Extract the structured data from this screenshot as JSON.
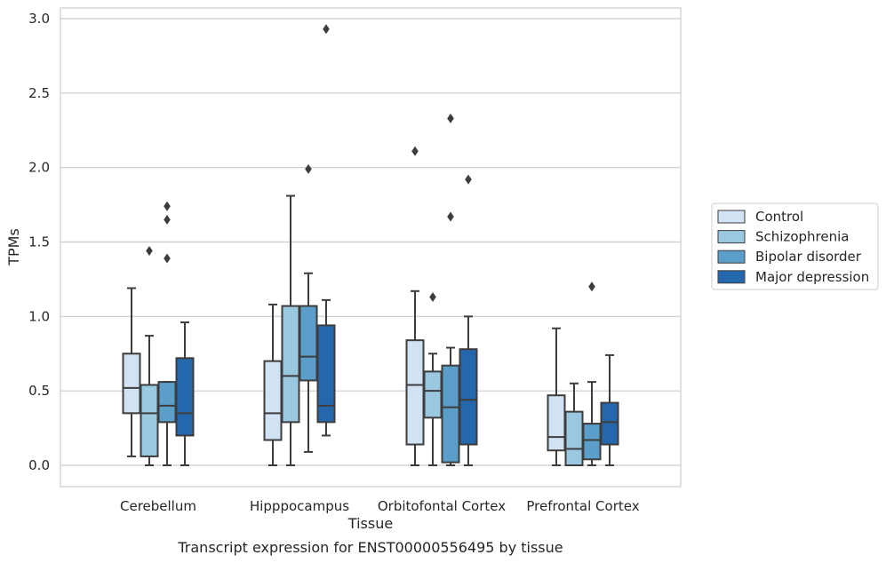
{
  "chart_data": {
    "type": "box",
    "xlabel": "Tissue",
    "ylabel": "TPMs",
    "caption": "Transcript expression for ENST00000556495 by tissue",
    "ylim": [
      -0.14,
      3.08
    ],
    "yticks": [
      "0.0",
      "0.5",
      "1.0",
      "1.5",
      "2.0",
      "2.5",
      "3.0"
    ],
    "grid": "horizontal",
    "legend_position": "right",
    "categories": [
      "Cerebellum",
      "Hipppocampus",
      "Orbitofontal Cortex",
      "Prefrontal Cortex"
    ],
    "series": [
      {
        "name": "Control",
        "color": "#d1e2f2",
        "boxes": [
          {
            "min": 0.06,
            "q1": 0.35,
            "median": 0.52,
            "q3": 0.75,
            "max": 1.19,
            "outliers": []
          },
          {
            "min": 0.0,
            "q1": 0.17,
            "median": 0.35,
            "q3": 0.7,
            "max": 1.08,
            "outliers": []
          },
          {
            "min": 0.0,
            "q1": 0.14,
            "median": 0.54,
            "q3": 0.84,
            "max": 1.17,
            "outliers": [
              2.11
            ]
          },
          {
            "min": 0.0,
            "q1": 0.1,
            "median": 0.19,
            "q3": 0.47,
            "max": 0.92,
            "outliers": []
          }
        ]
      },
      {
        "name": "Schizophrenia",
        "color": "#9ac8e0",
        "boxes": [
          {
            "min": 0.0,
            "q1": 0.06,
            "median": 0.35,
            "q3": 0.54,
            "max": 0.87,
            "outliers": [
              1.44
            ]
          },
          {
            "min": 0.0,
            "q1": 0.29,
            "median": 0.6,
            "q3": 1.07,
            "max": 1.81,
            "outliers": []
          },
          {
            "min": 0.0,
            "q1": 0.32,
            "median": 0.5,
            "q3": 0.63,
            "max": 0.75,
            "outliers": [
              1.13
            ]
          },
          {
            "min": 0.0,
            "q1": 0.0,
            "median": 0.11,
            "q3": 0.36,
            "max": 0.55,
            "outliers": []
          }
        ]
      },
      {
        "name": "Bipolar disorder",
        "color": "#5a9ec9",
        "boxes": [
          {
            "min": 0.0,
            "q1": 0.29,
            "median": 0.4,
            "q3": 0.56,
            "max": 0.56,
            "outliers": [
              1.39,
              1.65,
              1.74
            ]
          },
          {
            "min": 0.09,
            "q1": 0.57,
            "median": 0.73,
            "q3": 1.07,
            "max": 1.29,
            "outliers": [
              1.99
            ]
          },
          {
            "min": 0.0,
            "q1": 0.02,
            "median": 0.39,
            "q3": 0.67,
            "max": 0.79,
            "outliers": [
              1.67,
              2.33
            ]
          },
          {
            "min": 0.0,
            "q1": 0.04,
            "median": 0.17,
            "q3": 0.28,
            "max": 0.56,
            "outliers": [
              1.2
            ]
          }
        ]
      },
      {
        "name": "Major depression",
        "color": "#2567ac",
        "boxes": [
          {
            "min": 0.0,
            "q1": 0.2,
            "median": 0.35,
            "q3": 0.72,
            "max": 0.96,
            "outliers": []
          },
          {
            "min": 0.2,
            "q1": 0.29,
            "median": 0.4,
            "q3": 0.94,
            "max": 1.11,
            "outliers": [
              2.93
            ]
          },
          {
            "min": 0.0,
            "q1": 0.14,
            "median": 0.44,
            "q3": 0.78,
            "max": 1.0,
            "outliers": [
              1.92
            ]
          },
          {
            "min": 0.0,
            "q1": 0.14,
            "median": 0.29,
            "q3": 0.42,
            "max": 0.74,
            "outliers": []
          }
        ]
      }
    ]
  }
}
